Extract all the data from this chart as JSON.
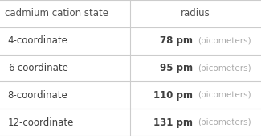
{
  "col_headers": [
    "cadmium cation state",
    "radius"
  ],
  "rows": [
    [
      "4-coordinate",
      "78 pm",
      "(picometers)"
    ],
    [
      "6-coordinate",
      "95 pm",
      "(picometers)"
    ],
    [
      "8-coordinate",
      "110 pm",
      "(picometers)"
    ],
    [
      "12-coordinate",
      "131 pm",
      "(picometers)"
    ]
  ],
  "background_color": "#ffffff",
  "header_text_color": "#505050",
  "row_text_color": "#404040",
  "grid_color": "#cccccc",
  "picometers_color": "#aaaaaa",
  "col_split": 0.497,
  "header_fontsize": 8.5,
  "row_fontsize": 8.5,
  "bold_value_fontsize": 8.5,
  "small_fontsize": 7.5
}
